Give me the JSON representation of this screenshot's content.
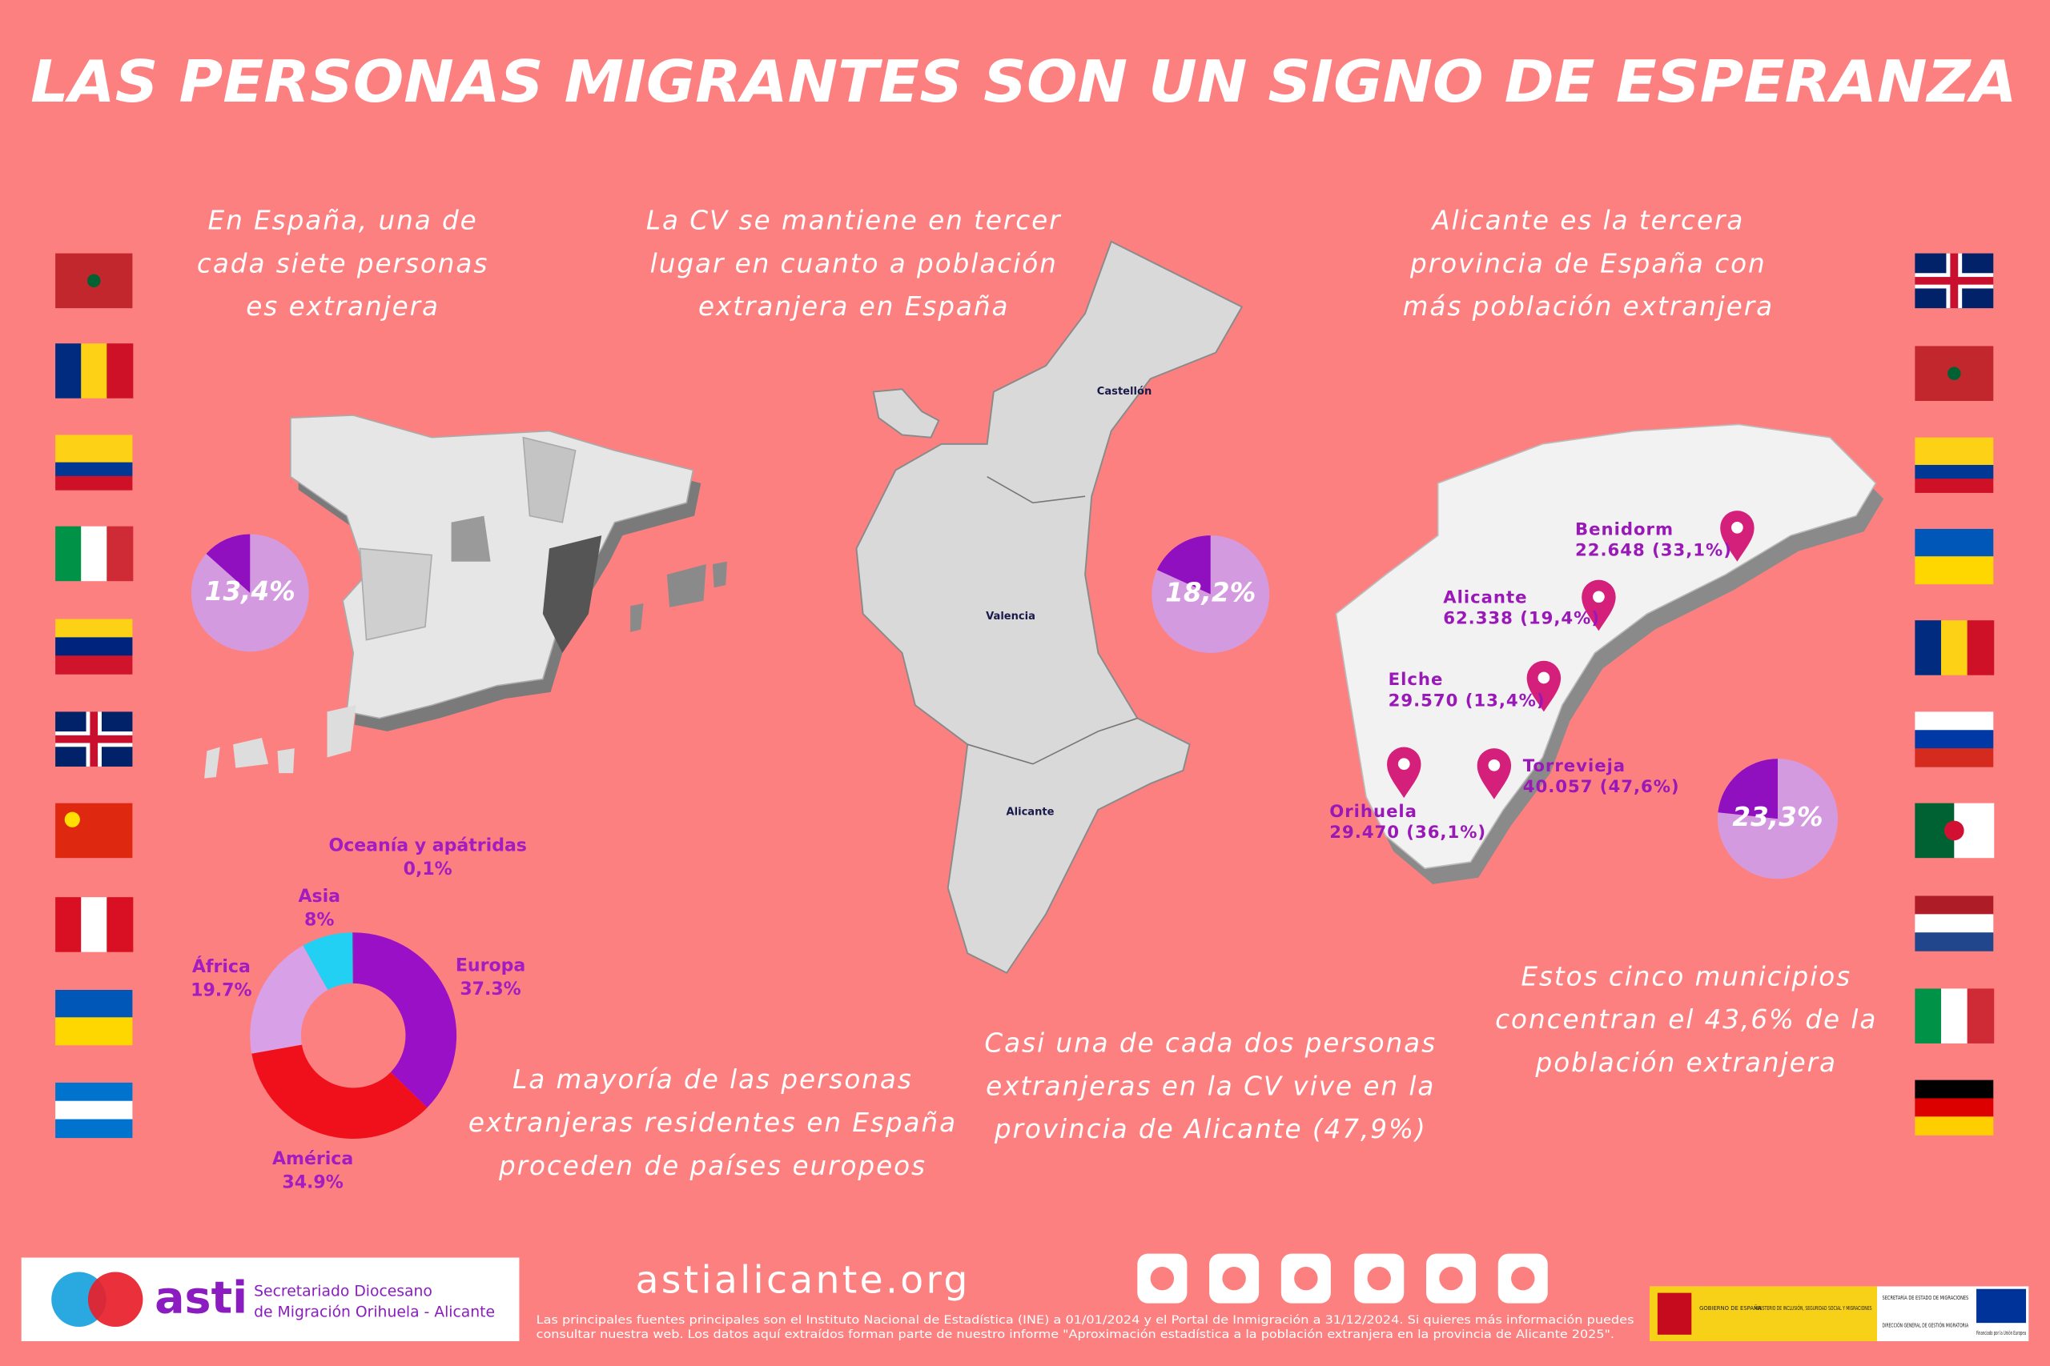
{
  "title": "LAS PERSONAS MIGRANTES SON UN SIGNO DE ESPERANZA",
  "spain": {
    "text": [
      "En España, una de",
      "cada siete personas",
      "es extranjera"
    ],
    "value": 13.4,
    "value_label": "13,4%"
  },
  "valencia": {
    "text": [
      "La CV se mantiene en tercer",
      "lugar en cuanto a población",
      "extranjera en España"
    ],
    "value": 18.2,
    "value_label": "18,2%",
    "map_labels": [
      "Castellón",
      "Valencia",
      "Alicante"
    ]
  },
  "alicante": {
    "text": [
      "Alicante es la tercera",
      "provincia de España con",
      "más población extranjera"
    ],
    "value": 23.3,
    "value_label": "23,3%",
    "municipalities": [
      {
        "name": "Benidorm",
        "figure": "22.648 (33,1%)"
      },
      {
        "name": "Alicante",
        "figure": "62.338 (19,4%)"
      },
      {
        "name": "Elche",
        "figure": "29.570 (13,4%)"
      },
      {
        "name": "Torrevieja",
        "figure": "40.057 (47,6%)"
      },
      {
        "name": "Orihuela",
        "figure": "29.470 (36,1%)"
      }
    ]
  },
  "origin": {
    "type": "donut",
    "text": [
      "La mayoría de las personas",
      "extranjeras residentes en España",
      "proceden de países europeos"
    ],
    "categories": [
      "Europa",
      "América",
      "África",
      "Asia",
      "Oceanía y apátridas"
    ],
    "values": [
      37.3,
      34.9,
      19.7,
      8,
      0.1
    ],
    "value_labels": [
      "37.3%",
      "34.9%",
      "19.7%",
      "8%",
      "0,1%"
    ],
    "colors": [
      "#9a10c6",
      "#f0101c",
      "#d8a0e6",
      "#22d0f4",
      "#6a1090"
    ]
  },
  "alicante_share": {
    "text": [
      "Casi una de cada dos personas",
      "extranjeras en la CV vive en la",
      "provincia de Alicante (47,9%)"
    ]
  },
  "municipalities_share": {
    "text": [
      "Estos cinco municipios",
      "concentran el 43,6% de la",
      "población extranjera"
    ]
  },
  "footer": {
    "logo": "asti",
    "organization": [
      "Secretariado Diocesano",
      "de Migración Orihuela - Alicante"
    ],
    "website": "astialicante.org",
    "sources": [
      "Las principales fuentes principales son el Instituto Nacional de Estadística (INE) a 01/01/2024 y el Portal de Inmigración a 31/12/2024. Si quieres más información puedes",
      "consultar nuestra web. Los datos aquí extraídos forman parte de nuestro informe \"Aproximación estadística a la población extranjera en la provincia de Alicante 2025\"."
    ],
    "partners": [
      "GOBIERNO DE ESPAÑA",
      "MINISTERIO DE INCLUSIÓN, SEGURIDAD SOCIAL Y MIGRACIONES",
      "SECRETARÍA DE ESTADO DE MIGRACIONES",
      "DIRECCIÓN GENERAL DE GESTIÓN MIGRATORIA",
      "Financiado por la Unión Europea"
    ]
  }
}
